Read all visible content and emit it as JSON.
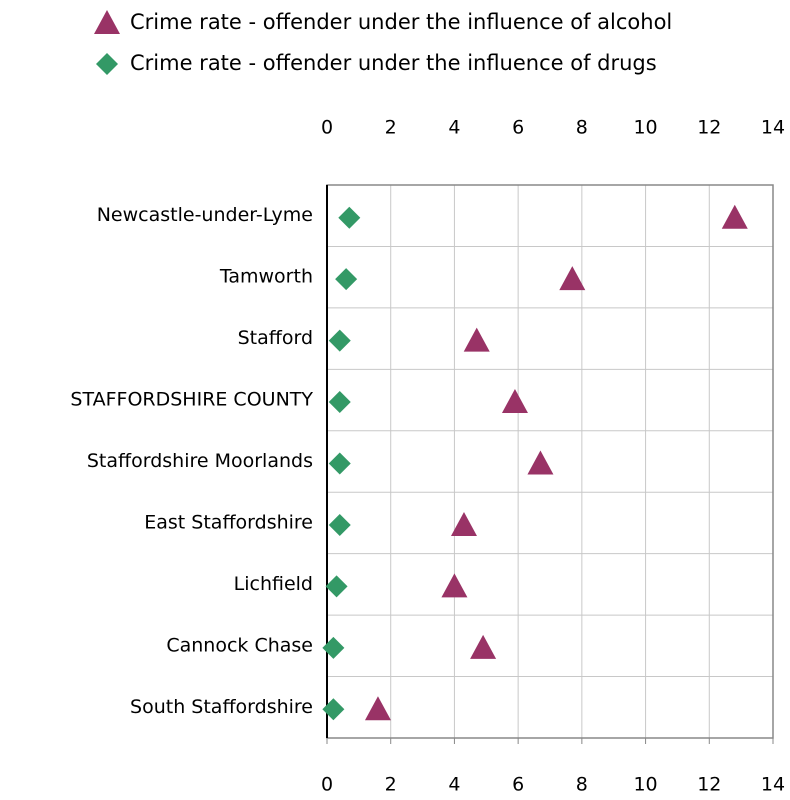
{
  "chart_data": {
    "type": "dot",
    "categories": [
      "Newcastle-under-Lyme",
      "Tamworth",
      "Stafford",
      "STAFFORDSHIRE COUNTY",
      "Staffordshire Moorlands",
      "East Staffordshire",
      "Lichfield",
      "Cannock Chase",
      "South Staffordshire"
    ],
    "series": [
      {
        "name": "Crime rate - offender under the influence of alcohol",
        "color": "#993366",
        "marker": "triangle",
        "values": [
          12.8,
          7.7,
          4.7,
          5.9,
          6.7,
          4.3,
          4.0,
          4.9,
          1.6
        ]
      },
      {
        "name": "Crime rate - offender under the influence of drugs",
        "color": "#339966",
        "marker": "diamond",
        "values": [
          0.7,
          0.6,
          0.4,
          0.4,
          0.4,
          0.4,
          0.3,
          0.2,
          0.2
        ]
      }
    ],
    "xlim": [
      0,
      14
    ],
    "xticks": [
      0,
      2,
      4,
      6,
      8,
      10,
      12,
      14
    ],
    "grid": true
  }
}
